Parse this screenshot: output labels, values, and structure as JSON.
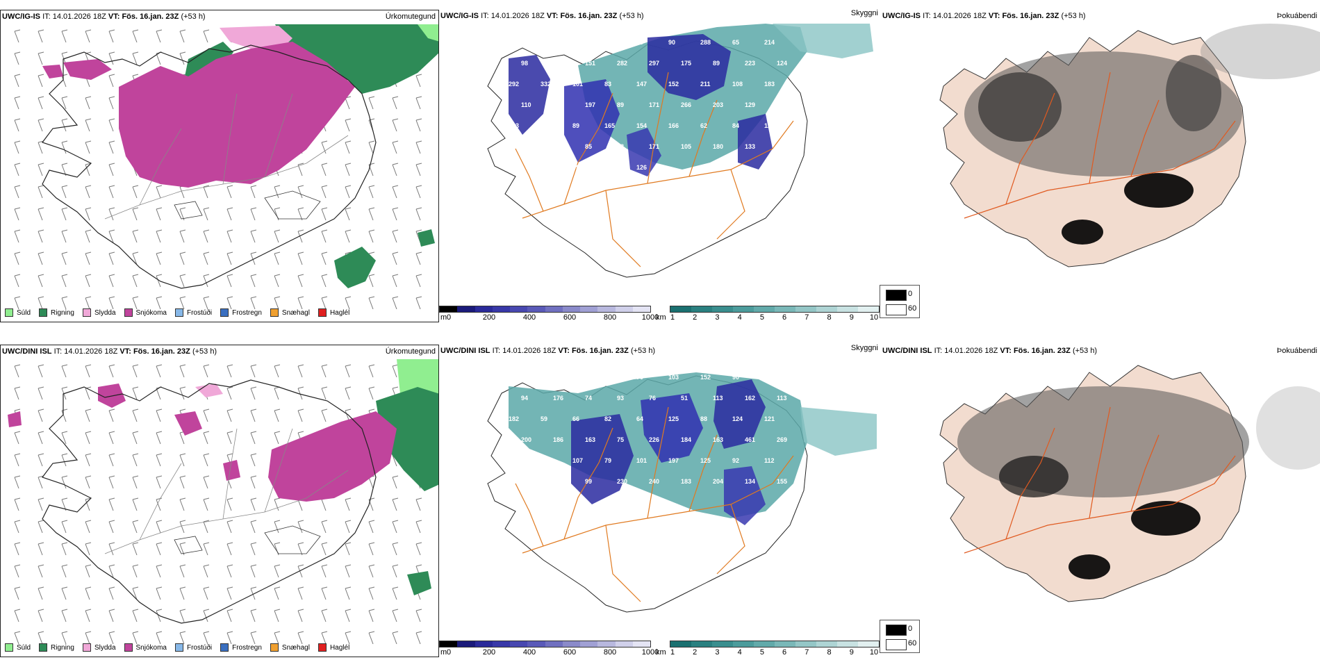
{
  "panels": {
    "top_left": {
      "model": "UWC/IG-IS",
      "it_label": "IT:",
      "it_value": "14.01.2026 18Z",
      "vt_label": "VT:",
      "vt_value": "Fös. 16.jan. 23Z",
      "lead": "(+53 h)",
      "product": "Úrkomutegund"
    },
    "top_mid": {
      "model": "UWC/IG-IS",
      "it_label": "IT:",
      "it_value": "14.01.2026 18Z",
      "vt_label": "VT:",
      "vt_value": "Fös. 16.jan. 23Z",
      "lead": "(+53 h)",
      "product": "Skyggni"
    },
    "top_right": {
      "model": "UWC/IG-IS",
      "it_label": "IT:",
      "it_value": "14.01.2026 18Z",
      "vt_label": "VT:",
      "vt_value": "Fös. 16.jan. 23Z",
      "lead": "(+53 h)",
      "product": "Þokuábendi"
    },
    "bot_left": {
      "model": "UWC/DINI ISL",
      "it_label": "IT:",
      "it_value": "14.01.2026 18Z",
      "vt_label": "VT:",
      "vt_value": "Fös. 16.jan. 23Z",
      "lead": "(+53 h)",
      "product": "Úrkomutegund"
    },
    "bot_mid": {
      "model": "UWC/DINI ISL",
      "it_label": "IT:",
      "it_value": "14.01.2026 18Z",
      "vt_label": "VT:",
      "vt_value": "Fös. 16.jan. 23Z",
      "lead": "(+53 h)",
      "product": "Skyggni"
    },
    "bot_right": {
      "model": "UWC/DINI ISL",
      "it_label": "IT:",
      "it_value": "14.01.2026 18Z",
      "vt_label": "VT:",
      "vt_value": "Fös. 16.jan. 23Z",
      "lead": "(+53 h)",
      "product": "Þokuábendi"
    }
  },
  "precip_legend": [
    {
      "label": "Súld",
      "color": "#90ee90"
    },
    {
      "label": "Rigning",
      "color": "#2e8b57"
    },
    {
      "label": "Slydda",
      "color": "#f0a8d8"
    },
    {
      "label": "Snjókoma",
      "color": "#c0449c"
    },
    {
      "label": "Frostúði",
      "color": "#87b8e8"
    },
    {
      "label": "Frostregn",
      "color": "#3a6fc0"
    },
    {
      "label": "Snæhagl",
      "color": "#f0a030"
    },
    {
      "label": "Haglél",
      "color": "#e02020"
    }
  ],
  "height_scale": {
    "unit": "m",
    "ticks": [
      "0",
      "200",
      "400",
      "600",
      "800",
      "1000"
    ],
    "colors": [
      "#000000",
      "#1a1a7a",
      "#2a2a9a",
      "#3838a8",
      "#4848b0",
      "#5a5ab8",
      "#7070c0",
      "#8a8aca",
      "#a0a0d4",
      "#b8b8de",
      "#d0d0ea",
      "#e4e4f4"
    ]
  },
  "visibility_scale": {
    "unit": "km",
    "ticks": [
      "1",
      "2",
      "3",
      "4",
      "5",
      "6",
      "7",
      "8",
      "9",
      "10"
    ],
    "colors": [
      "#1a7070",
      "#2a8080",
      "#3a8e8e",
      "#4c9c9c",
      "#62aaaa",
      "#7ab8b8",
      "#94c6c6",
      "#aed4d4",
      "#c8e2e2",
      "#e2f0f0"
    ]
  },
  "fog_legend": [
    {
      "label": "0",
      "color": "#000000"
    },
    {
      "label": "60",
      "color": "#ffffff"
    }
  ],
  "cloud_labels_top": [
    "88",
    "77",
    "90",
    "149",
    "79",
    "90",
    "288",
    "65",
    "214",
    "98",
    "129",
    "151",
    "282",
    "297",
    "175",
    "89",
    "223",
    "124",
    "292",
    "332",
    "101",
    "83",
    "147",
    "152",
    "211",
    "108",
    "183",
    "110",
    "124",
    "197",
    "89",
    "171",
    "266",
    "203",
    "129",
    "102",
    "123",
    "227",
    "89",
    "165",
    "154",
    "166",
    "62",
    "84",
    "123",
    "123",
    "117",
    "85",
    "88",
    "171",
    "105",
    "180",
    "133",
    "59",
    "87",
    "93",
    "95",
    "181",
    "126"
  ],
  "cloud_labels_bot": [
    "172",
    "94",
    "104",
    "80",
    "70",
    "103",
    "152",
    "90",
    "123",
    "94",
    "176",
    "74",
    "93",
    "76",
    "51",
    "113",
    "162",
    "113",
    "182",
    "59",
    "66",
    "82",
    "64",
    "125",
    "88",
    "124",
    "121",
    "200",
    "186",
    "163",
    "75",
    "226",
    "184",
    "163",
    "461",
    "269",
    "105",
    "62",
    "107",
    "79",
    "101",
    "197",
    "125",
    "92",
    "112",
    "72",
    "83",
    "99",
    "230",
    "240",
    "183",
    "204",
    "134",
    "155",
    "198",
    "96"
  ]
}
